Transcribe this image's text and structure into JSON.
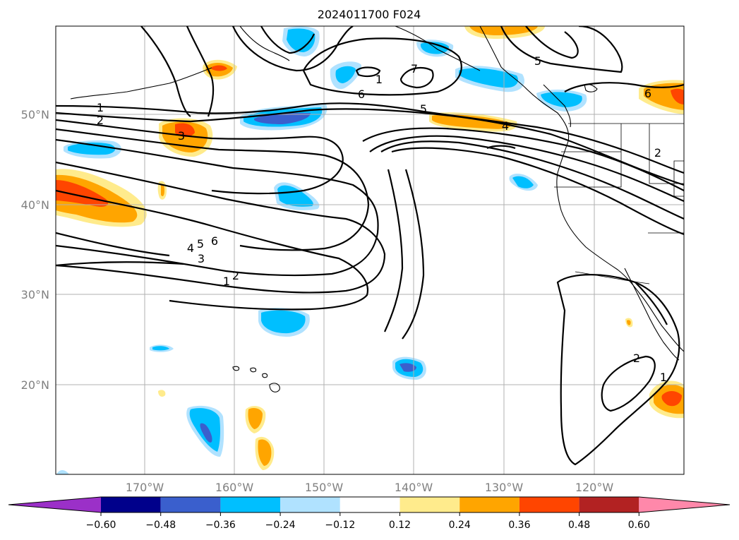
{
  "title": "2024011700 F024",
  "map": {
    "lon_labels": [
      "170°W",
      "160°W",
      "150°W",
      "140°W",
      "130°W",
      "120°W"
    ],
    "lat_labels": [
      "50°N",
      "40°N",
      "30°N",
      "20°N"
    ],
    "contour_labels": [
      "1",
      "2",
      "3",
      "4",
      "5",
      "6",
      "7",
      "1",
      "2",
      "3",
      "4",
      "5",
      "6",
      "1",
      "2",
      "5",
      "6",
      "1",
      "2"
    ]
  },
  "colorbar": {
    "ticks": [
      "−0.60",
      "−0.48",
      "−0.36",
      "−0.24",
      "−0.12",
      "0.12",
      "0.24",
      "0.36",
      "0.48",
      "0.60"
    ],
    "colors": [
      "#9b30c8",
      "#00008b",
      "#3a5fcd",
      "#00bfff",
      "#b0e2ff",
      "#ffffff",
      "#ffeb8c",
      "#ffa500",
      "#ff4500",
      "#b22222",
      "#ff88aa"
    ]
  },
  "colors": {
    "neg_light": "#b0e2ff",
    "neg_mid": "#00bfff",
    "neg_dark": "#3a5fcd",
    "pos_light": "#ffeb8c",
    "pos_mid": "#ffa500",
    "pos_dark": "#ff4500"
  }
}
